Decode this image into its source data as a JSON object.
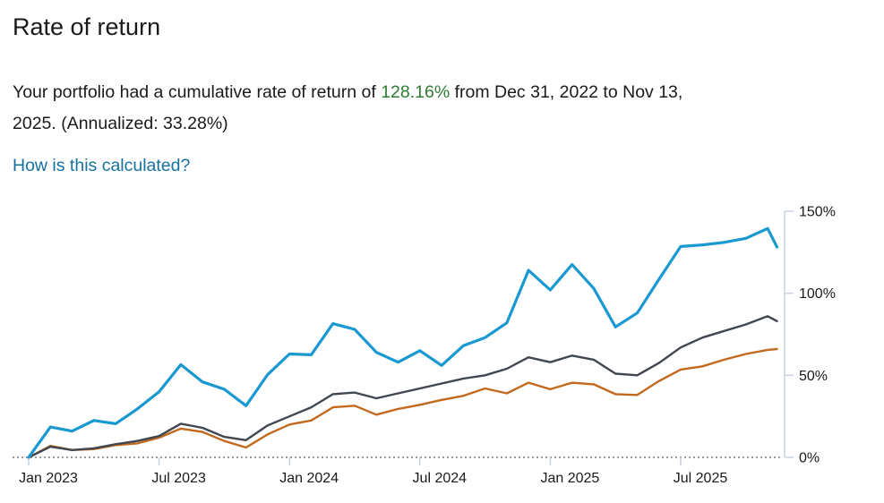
{
  "page": {
    "title": "Rate of return",
    "description": {
      "text_before_highlight": "Your portfolio had a cumulative rate of return of ",
      "highlight": "128.16%",
      "text_after_highlight": " from Dec 31, 2022 to Nov 13,",
      "line2": "2025. (Annualized: 33.28%)"
    },
    "link_label": "How is this calculated?"
  },
  "colors": {
    "green_highlight": "#2e7d32",
    "link_blue": "#15719f",
    "text": "#1a1a1a",
    "axis_line": "#c9d3e3",
    "zero_line_dotted": "#999999",
    "series_blue": "#1899d2",
    "series_gray": "#404750",
    "series_orange": "#c2691d"
  },
  "chart_data": {
    "type": "line",
    "title": "",
    "xlabel": "",
    "ylabel": "",
    "ylim": [
      0,
      150
    ],
    "grid": false,
    "legend": "none",
    "y_axis": {
      "side": "right",
      "tick_values": [
        0,
        50,
        100,
        150
      ],
      "tick_labels": [
        "0%",
        "50%",
        "100%",
        "150%"
      ]
    },
    "x_axis": {
      "tick_month_indices": [
        0,
        6,
        12,
        18,
        24,
        30
      ],
      "tick_labels": [
        "Jan 2023",
        "Jul 2023",
        "Jan 2024",
        "Jul 2024",
        "Jan 2025",
        "Jul 2025"
      ]
    },
    "x_index": [
      0,
      1,
      2,
      3,
      4,
      5,
      6,
      7,
      8,
      9,
      10,
      11,
      12,
      13,
      14,
      15,
      16,
      17,
      18,
      19,
      20,
      21,
      22,
      23,
      24,
      25,
      26,
      27,
      28,
      29,
      30,
      31,
      32,
      33,
      34,
      34.43
    ],
    "x_labels": [
      "Dec 31, 2022",
      "Jan 2023",
      "Feb 2023",
      "Mar 2023",
      "Apr 2023",
      "May 2023",
      "Jun 2023",
      "Jul 2023",
      "Aug 2023",
      "Sep 2023",
      "Oct 2023",
      "Nov 2023",
      "Dec 2023",
      "Jan 2024",
      "Feb 2024",
      "Mar 2024",
      "Apr 2024",
      "May 2024",
      "Jun 2024",
      "Jul 2024",
      "Aug 2024",
      "Sep 2024",
      "Oct 2024",
      "Nov 2024",
      "Dec 2024",
      "Jan 2025",
      "Feb 2025",
      "Mar 2025",
      "Apr 2025",
      "May 2025",
      "Jun 2025",
      "Jul 2025",
      "Aug 2025",
      "Sep 2025",
      "Oct 2025",
      "Nov 13, 2025"
    ],
    "series": [
      {
        "name": "orange-benchmark",
        "color_key": "series_orange",
        "stroke_width": 2.4,
        "values": [
          0,
          7,
          4.5,
          5,
          7.5,
          8.5,
          12,
          17.5,
          15.5,
          10,
          6,
          14,
          20,
          22.5,
          30.5,
          31.5,
          26,
          29.5,
          32,
          35,
          37.5,
          42,
          39,
          45.5,
          41.5,
          45.5,
          44.5,
          38.5,
          38,
          46.5,
          53.5,
          55.5,
          59.5,
          63,
          65.5,
          66
        ]
      },
      {
        "name": "gray-benchmark",
        "color_key": "series_gray",
        "stroke_width": 2.4,
        "values": [
          0,
          6.5,
          4.5,
          5.5,
          8,
          10,
          13,
          20.5,
          18,
          12.5,
          10.5,
          19.5,
          25,
          30.5,
          38.5,
          39.5,
          36,
          39,
          42,
          45,
          48,
          50,
          54,
          61,
          58,
          62,
          59.5,
          51,
          50,
          57.5,
          67,
          73,
          77,
          81,
          86,
          83
        ]
      },
      {
        "name": "portfolio",
        "color_key": "series_blue",
        "stroke_width": 3.2,
        "values": [
          0,
          18.5,
          16,
          22.5,
          20.5,
          29.5,
          40,
          56.5,
          46,
          41.5,
          31.5,
          50.5,
          63,
          62.5,
          81.5,
          78,
          64,
          58,
          65,
          56,
          68,
          73,
          82,
          114,
          102,
          117.5,
          103,
          79.5,
          88,
          108.5,
          128.5,
          129.5,
          131,
          133.5,
          139.5,
          128.16
        ]
      }
    ]
  }
}
